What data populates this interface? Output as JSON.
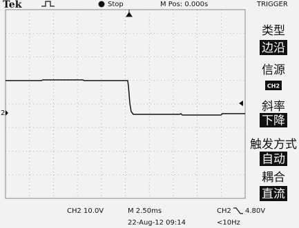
{
  "header": {
    "brand": "Tek",
    "status": "Stop",
    "position": "M Pos: 0.000s",
    "menu_title": "TRIGGER"
  },
  "menu": [
    {
      "label": "类型",
      "value": "边沿"
    },
    {
      "label": "信源",
      "value": "CH2"
    },
    {
      "label": "斜率",
      "value": "下降"
    },
    {
      "label": "触发方式",
      "value": "自动"
    },
    {
      "label": "耦合",
      "value": "直流"
    }
  ],
  "channel_marker": "2",
  "footer": {
    "channel_scale": "CH2 10.0V",
    "time_scale": "M 2.50ms",
    "trigger_source": "CH2",
    "trigger_level": "4.80V",
    "date": "22-Aug-12 09:14",
    "frequency": "<10Hz"
  }
}
